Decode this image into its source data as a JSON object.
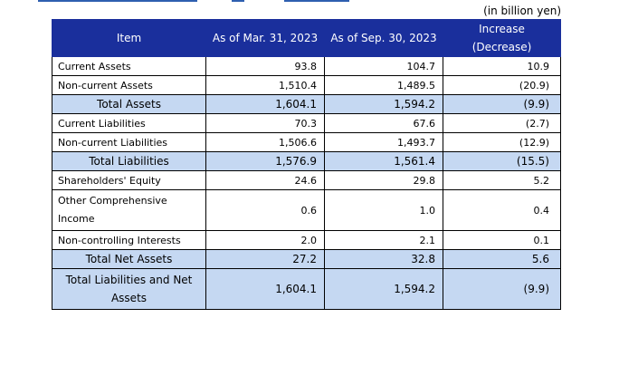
{
  "unit_note": "(in billion yen)",
  "headers": {
    "item": "Item",
    "col1": "As of Mar. 31, 2023",
    "col2": "As of Sep. 30, 2023",
    "col3_line1": "Increase",
    "col3_line2": "(Decrease)"
  },
  "rows": [
    {
      "label": "Current Assets",
      "v1": "93.8",
      "v2": "104.7",
      "v3": "10.9"
    },
    {
      "label": "Non-current Assets",
      "v1": "1,510.4",
      "v2": "1,489.5",
      "v3": "(20.9)"
    },
    {
      "label": "Total Assets",
      "v1": "1,604.1",
      "v2": "1,594.2",
      "v3": "(9.9)"
    },
    {
      "label": "Current Liabilities",
      "v1": "70.3",
      "v2": "67.6",
      "v3": "(2.7)"
    },
    {
      "label": "Non-current Liabilities",
      "v1": "1,506.6",
      "v2": "1,493.7",
      "v3": "(12.9)"
    },
    {
      "label": "Total Liabilities",
      "v1": "1,576.9",
      "v2": "1,561.4",
      "v3": "(15.5)"
    },
    {
      "label": "Shareholders' Equity",
      "v1": "24.6",
      "v2": "29.8",
      "v3": "5.2"
    },
    {
      "label_line1": "Other Comprehensive",
      "label_line2": "Income",
      "v1": "0.6",
      "v2": "1.0",
      "v3": "0.4"
    },
    {
      "label": "Non-controlling Interests",
      "v1": "2.0",
      "v2": "2.1",
      "v3": "0.1"
    },
    {
      "label": "Total Net Assets",
      "v1": "27.2",
      "v2": "32.8",
      "v3": "5.6"
    },
    {
      "label_line1": "Total Liabilities and Net",
      "label_line2": "Assets",
      "v1": "1,604.1",
      "v2": "1,594.2",
      "v3": "(9.9)"
    }
  ],
  "colors": {
    "header_bg": "#1a2f9c",
    "total_bg": "#c5d8f2",
    "top_bar": "#2e5fb0"
  }
}
